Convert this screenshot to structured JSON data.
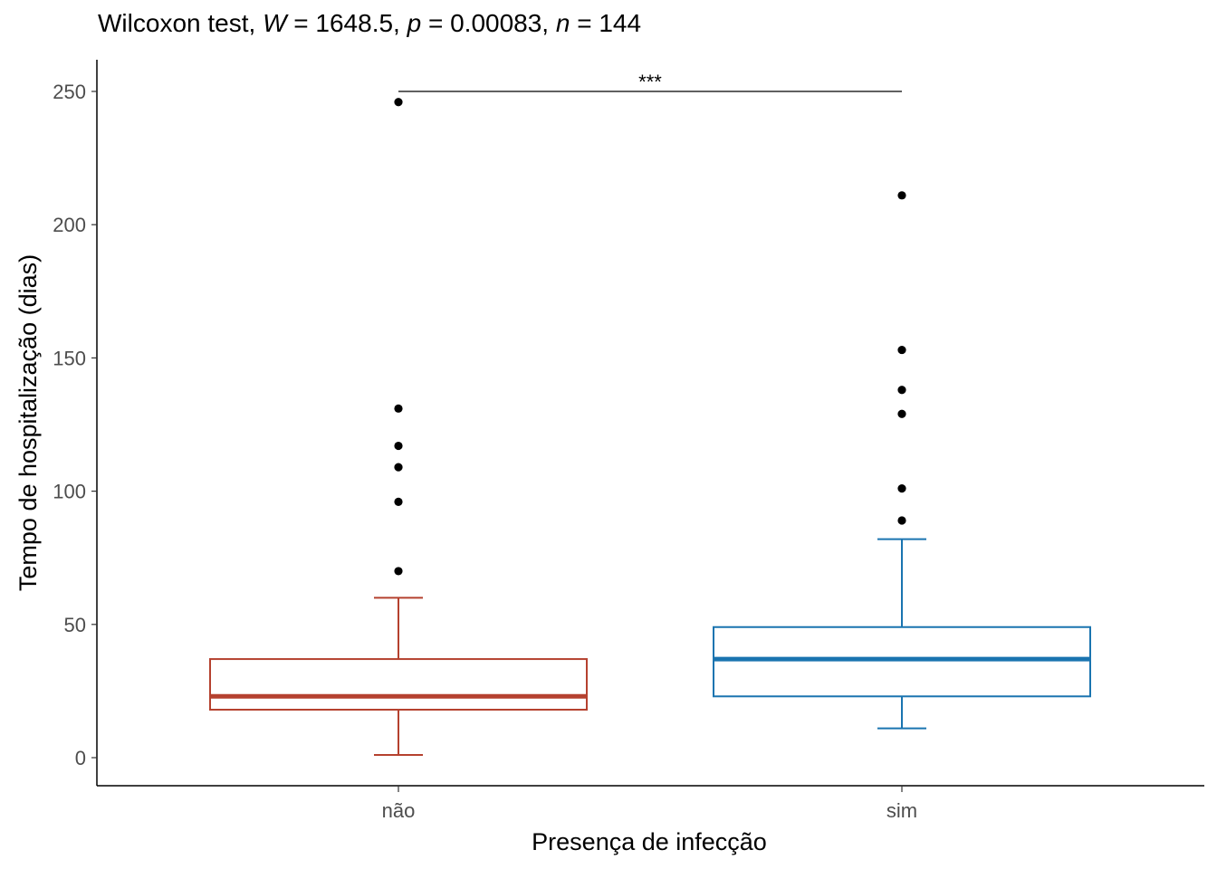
{
  "chart_data": {
    "type": "box",
    "title": {
      "prefix": "Wilcoxon test, ",
      "w_symbol": "W",
      "w_value": " = 1648.5, ",
      "p_symbol": "p",
      "p_value": " = 0.00083, ",
      "n_symbol": "n",
      "n_value": " = 144"
    },
    "xlabel": "Presença de infecção",
    "ylabel": "Tempo de hospitalização (dias)",
    "ylim": [
      -11,
      261
    ],
    "yticks": [
      0,
      50,
      100,
      150,
      200,
      250
    ],
    "categories": [
      "não",
      "sim"
    ],
    "boxes": [
      {
        "category": "não",
        "color": "#b5412f",
        "whisker_low": 1,
        "q1": 18,
        "median": 23,
        "q3": 37,
        "whisker_high": 60,
        "outliers": [
          70,
          96,
          109,
          117,
          131,
          246
        ]
      },
      {
        "category": "sim",
        "color": "#1a74b0",
        "whisker_low": 11,
        "q1": 23,
        "median": 37,
        "q3": 49,
        "whisker_high": 82,
        "outliers": [
          89,
          101,
          129,
          138,
          153,
          211
        ]
      }
    ],
    "significance": {
      "from": "não",
      "to": "sim",
      "y": 250,
      "label": "***"
    },
    "grid": false,
    "legend": "none"
  }
}
